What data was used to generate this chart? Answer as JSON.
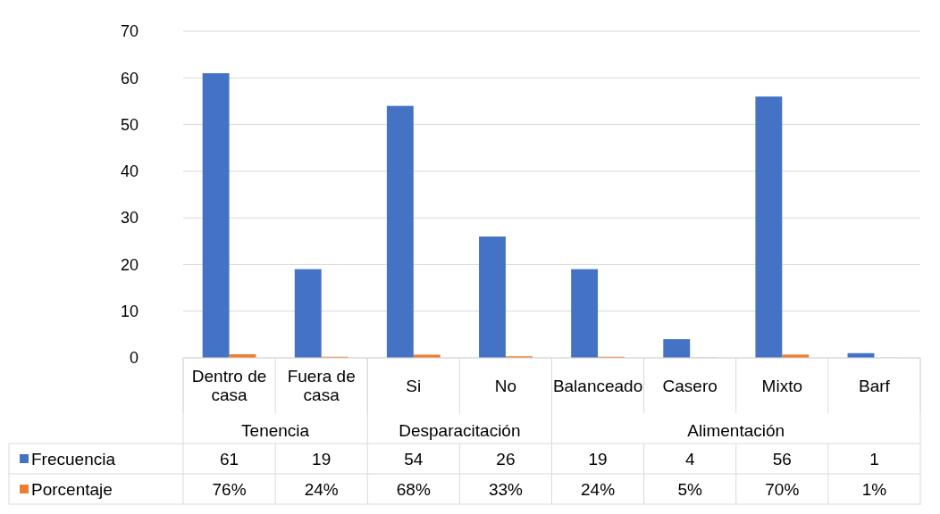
{
  "chart_data": {
    "type": "bar",
    "categories": [
      "Dentro de casa",
      "Fuera de casa",
      "Si",
      "No",
      "Balanceado",
      "Casero",
      "Mixto",
      "Barf"
    ],
    "series": [
      {
        "name": "Frecuencia",
        "color": "#4472c4",
        "values": [
          61,
          19,
          54,
          26,
          19,
          4,
          56,
          1
        ],
        "value_labels": [
          "61",
          "19",
          "54",
          "26",
          "19",
          "4",
          "56",
          "1"
        ]
      },
      {
        "name": "Porcentaje",
        "color": "#ed7d31",
        "values": [
          0.76,
          0.24,
          0.68,
          0.33,
          0.24,
          0.05,
          0.7,
          0.01
        ],
        "value_labels": [
          "76%",
          "24%",
          "68%",
          "33%",
          "24%",
          "5%",
          "70%",
          "1%"
        ]
      }
    ],
    "annotations": [
      "Tenencia",
      "Desparacitación",
      "Alimentación"
    ],
    "ylim": [
      0,
      70
    ],
    "yticks": [
      0,
      10,
      20,
      30,
      40,
      50,
      60,
      70
    ],
    "grid": "y",
    "legend": "bottom"
  }
}
